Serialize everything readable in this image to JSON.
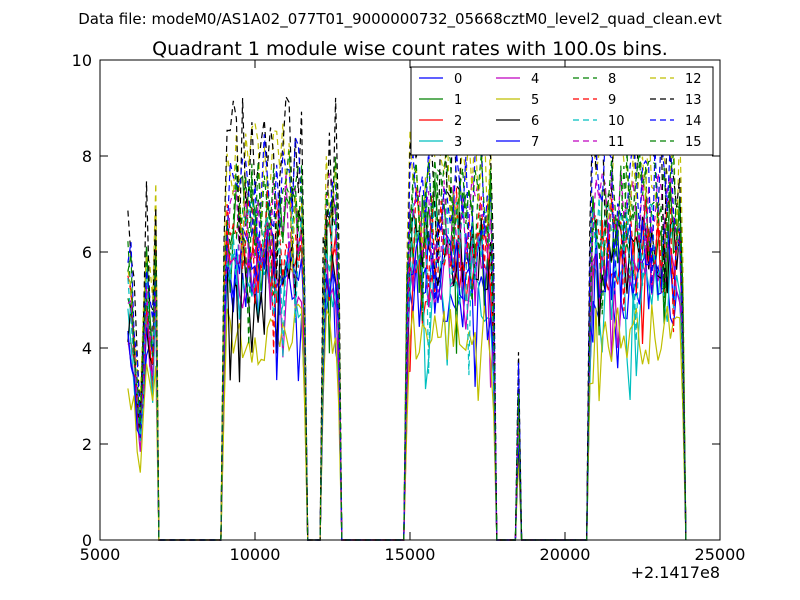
{
  "suptitle": "Data file: modeM0/AS1A02_077T01_9000000732_05668cztM0_level2_quad_clean.evt",
  "chart_data": {
    "type": "line",
    "title": "Quadrant 1 module wise count rates with 100.0s bins.",
    "xlabel": "",
    "ylabel": "",
    "xlim": [
      5000,
      25000
    ],
    "ylim": [
      0,
      10
    ],
    "x_offset_label": "+2.1417e8",
    "xticks": [
      5000,
      10000,
      15000,
      20000,
      25000
    ],
    "yticks": [
      0,
      2,
      4,
      6,
      8,
      10
    ],
    "grid": false,
    "legend_position": "top-right",
    "time_bins": {
      "start": 5900,
      "step": 100
    },
    "rates": {
      "orbit_a": {
        "start": 5900,
        "end": 6800,
        "profile": [
          0.8,
          0.74,
          0.62,
          0.45,
          0.38,
          0.55,
          0.82,
          0.7,
          0.6,
          0.86
        ]
      },
      "orbit_b": {
        "start": 9000,
        "end": 11600,
        "level": 1.0
      },
      "orbit_c": {
        "start": 12200,
        "end": 12700,
        "level": 1.0
      },
      "orbit_d": {
        "start": 14900,
        "end": 17700,
        "level": 1.0
      },
      "spike_e": {
        "at": 18500,
        "level": 0.42
      },
      "orbit_f": {
        "start": 20800,
        "end": 23800,
        "level": 1.0
      }
    },
    "series": [
      {
        "name": "0",
        "style": "solid",
        "color": "#0000ff",
        "level": 5.2
      },
      {
        "name": "1",
        "style": "solid",
        "color": "#008000",
        "level": 6.6
      },
      {
        "name": "2",
        "style": "solid",
        "color": "#ff0000",
        "level": 5.8
      },
      {
        "name": "3",
        "style": "solid",
        "color": "#00bfbf",
        "level": 5.3
      },
      {
        "name": "4",
        "style": "solid",
        "color": "#bf00bf",
        "level": 5.6
      },
      {
        "name": "5",
        "style": "solid",
        "color": "#bfbf00",
        "level": 4.3
      },
      {
        "name": "6",
        "style": "solid",
        "color": "#000000",
        "level": 6.0
      },
      {
        "name": "7",
        "style": "solid",
        "color": "#0000ff",
        "level": 5.8
      },
      {
        "name": "8",
        "style": "dashed",
        "color": "#008000",
        "level": 6.9
      },
      {
        "name": "9",
        "style": "dashed",
        "color": "#ff0000",
        "level": 6.4
      },
      {
        "name": "10",
        "style": "dashed",
        "color": "#00bfbf",
        "level": 6.2
      },
      {
        "name": "11",
        "style": "dashed",
        "color": "#bf00bf",
        "level": 6.7
      },
      {
        "name": "12",
        "style": "dashed",
        "color": "#bfbf00",
        "level": 7.6
      },
      {
        "name": "13",
        "style": "dashed",
        "color": "#000000",
        "level": 8.1
      },
      {
        "name": "14",
        "style": "dashed",
        "color": "#0000ff",
        "level": 7.4
      },
      {
        "name": "15",
        "style": "dashed",
        "color": "#008000",
        "level": 7.1
      }
    ]
  }
}
